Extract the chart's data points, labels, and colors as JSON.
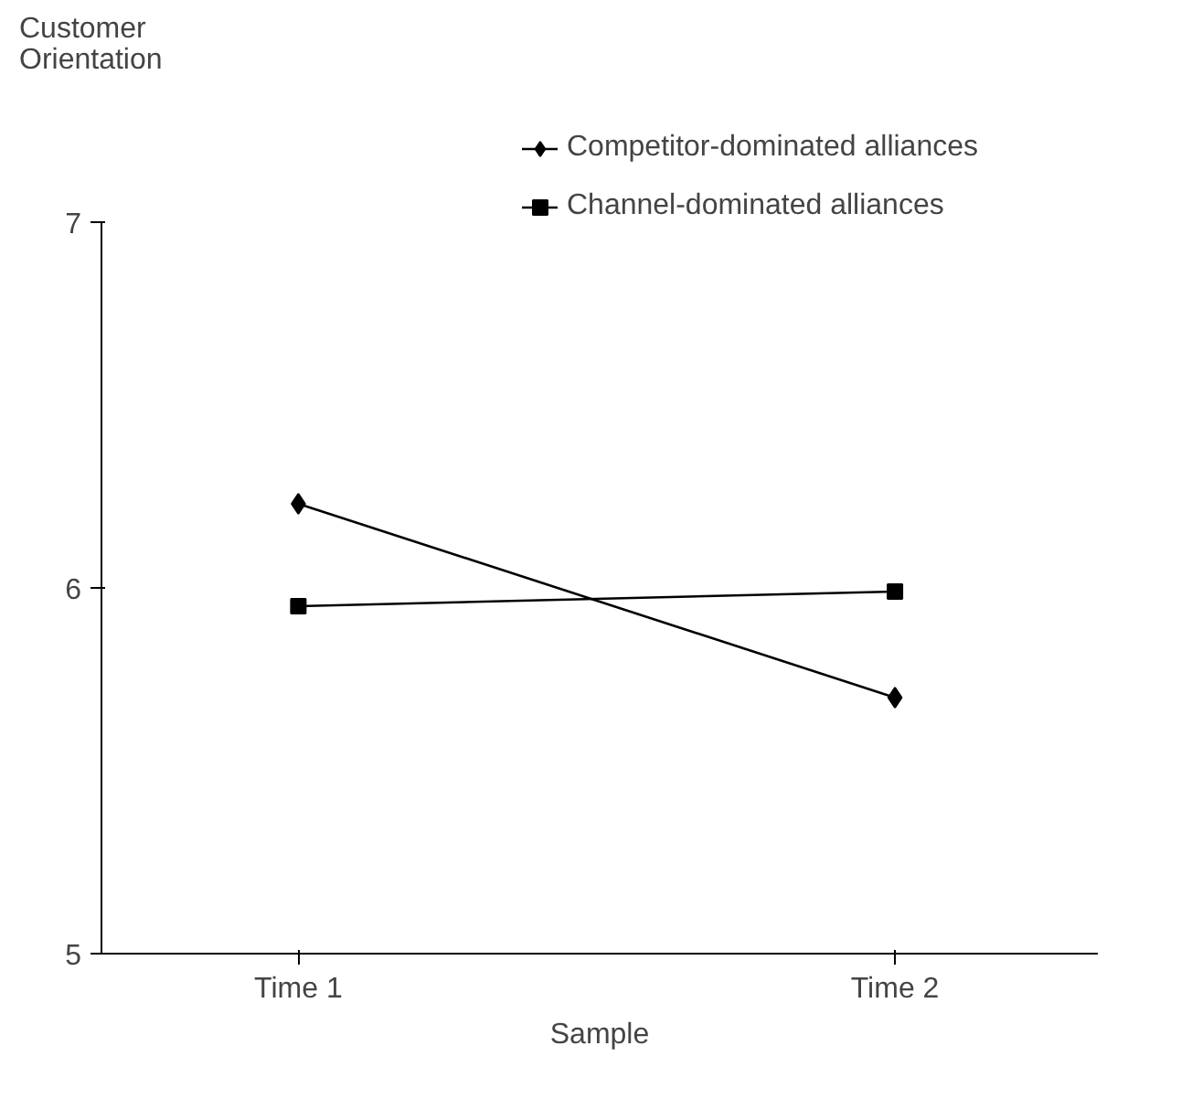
{
  "chart_data": {
    "type": "line",
    "xlabel": "Sample",
    "ylabel": "Customer Orientation",
    "categories": [
      "Time 1",
      "Time 2"
    ],
    "series": [
      {
        "name": "Competitor-dominated alliances",
        "color": "#000000",
        "marker": "diamond",
        "values": [
          6.23,
          5.7
        ]
      },
      {
        "name": "Channel-dominated alliances",
        "color": "#000000",
        "marker": "square",
        "values": [
          5.95,
          5.99
        ]
      }
    ],
    "ylim": [
      5,
      7
    ],
    "yticks": [
      5,
      6,
      7
    ],
    "grid": false,
    "legend": "top right",
    "line_style": "solid"
  }
}
